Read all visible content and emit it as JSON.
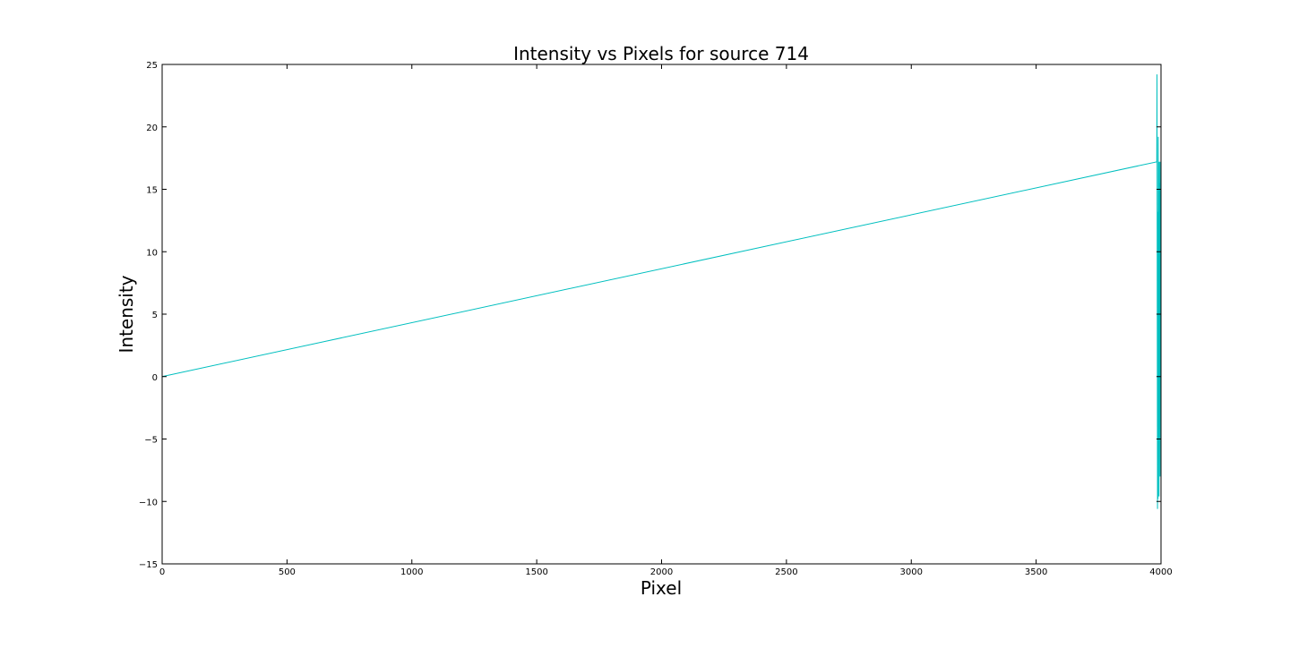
{
  "chart_data": {
    "type": "line",
    "title": "Intensity vs Pixels for source 714",
    "xlabel": "Pixel",
    "ylabel": "Intensity",
    "xlim": [
      0,
      4000
    ],
    "ylim": [
      -15,
      25
    ],
    "xticks": [
      0,
      500,
      1000,
      1500,
      2000,
      2500,
      3000,
      3500,
      4000
    ],
    "yticks": [
      -15,
      -10,
      -5,
      0,
      5,
      10,
      15,
      20,
      25
    ],
    "grid": false,
    "legend": "none",
    "series": [
      {
        "color": "#00bfbf",
        "x": [
          0,
          3983,
          3984,
          3985,
          3986,
          3987,
          3988,
          3989,
          3990,
          3991,
          3992,
          3993,
          3994,
          3995,
          3996,
          3997,
          3998,
          3999
        ],
        "y": [
          0,
          17.2,
          24.2,
          5.5,
          -10.6,
          13.2,
          -9.8,
          19.2,
          5.2,
          17.2,
          -9.6,
          15.5,
          4.5,
          17.2,
          -8.0,
          12.0,
          6.8,
          17.2
        ]
      }
    ]
  }
}
